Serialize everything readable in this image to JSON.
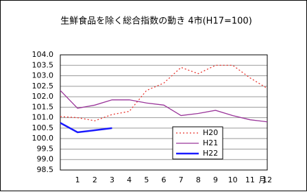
{
  "chart_data": {
    "type": "line",
    "title": "生鮮食品を除く総合指数の動き 4市(H17=100)",
    "x_label": "月",
    "categories": [
      null,
      "1",
      "2",
      "3",
      "4",
      "5",
      "6",
      "7",
      "8",
      "9",
      "10",
      "11",
      "12"
    ],
    "series": [
      {
        "name": "H20",
        "color": "#e8322b",
        "dash": true,
        "values": [
          101.05,
          101.0,
          100.85,
          101.15,
          101.3,
          102.3,
          102.65,
          103.4,
          103.1,
          103.5,
          103.5,
          102.9,
          102.4
        ]
      },
      {
        "name": "H21",
        "color": "#993399",
        "dash": false,
        "values": [
          102.3,
          101.45,
          101.6,
          101.85,
          101.85,
          101.7,
          101.6,
          101.1,
          101.2,
          101.35,
          101.1,
          100.9,
          100.8
        ]
      },
      {
        "name": "H22",
        "color": "#1a1aff",
        "dash": false,
        "values": [
          100.75,
          100.3,
          100.4,
          100.5,
          null,
          null,
          null,
          null,
          null,
          null,
          null,
          null,
          null
        ]
      }
    ],
    "ylim": [
      98.5,
      104
    ],
    "yticks": [
      {
        "value": 98.5,
        "label": "98.5"
      },
      {
        "value": 99,
        "label": "99.0"
      },
      {
        "value": 99.5,
        "label": "99.5"
      },
      {
        "value": 100,
        "label": "100.0"
      },
      {
        "value": 100.5,
        "label": "100.5"
      },
      {
        "value": 101,
        "label": "101.0"
      },
      {
        "value": 101.5,
        "label": "101.5"
      },
      {
        "value": 102,
        "label": "102.0"
      },
      {
        "value": 102.5,
        "label": "102.5"
      },
      {
        "value": 103,
        "label": "103.0"
      },
      {
        "value": 103.5,
        "label": "103.5"
      },
      {
        "value": 104,
        "label": "104.0"
      }
    ],
    "grid": true,
    "legend": "lower-right"
  }
}
